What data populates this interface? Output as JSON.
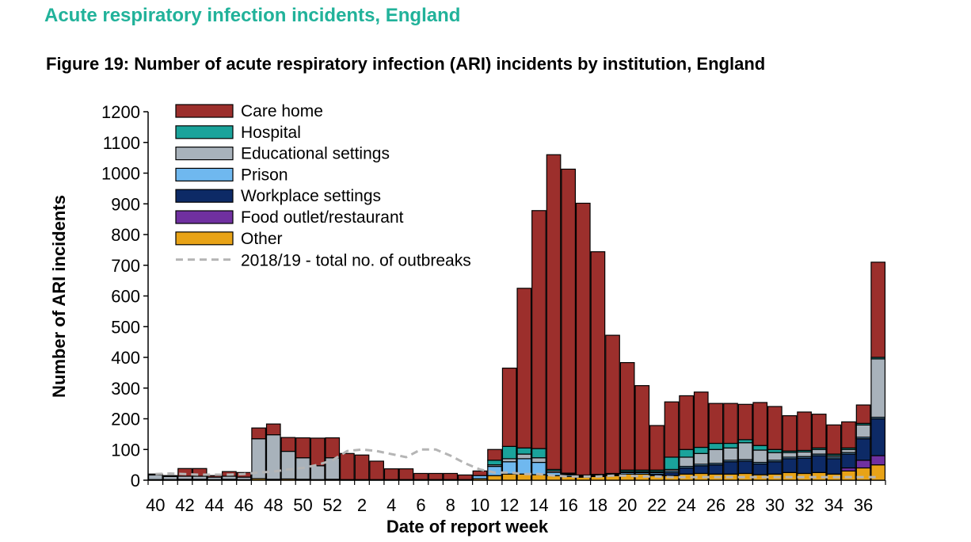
{
  "header": {
    "section_title": "Acute respiratory infection incidents, England",
    "figure_title": "Figure 19: Number of acute respiratory infection (ARI) incidents by institution, England"
  },
  "colors": {
    "Care home": "#9c2f2c",
    "Hospital": "#1aa39b",
    "Educational settings": "#a8b2bb",
    "Prison": "#6fb8ef",
    "Workplace settings": "#0d2a66",
    "Food outlet/restaurant": "#7030a0",
    "Other": "#e8a317",
    "2018/19 - total no. of outbreaks": "#b5b5b5"
  },
  "chart_data": {
    "type": "bar",
    "stacked": true,
    "title": "",
    "xlabel": "Date of report week",
    "ylabel": "Number of ARI incidents",
    "ylim": [
      0,
      1200
    ],
    "yticks": [
      0,
      100,
      200,
      300,
      400,
      500,
      600,
      700,
      800,
      900,
      1000,
      1100,
      1200
    ],
    "grid": false,
    "legend_position": "top-left",
    "categories": [
      40,
      41,
      42,
      43,
      44,
      45,
      46,
      47,
      48,
      49,
      50,
      51,
      52,
      1,
      2,
      3,
      4,
      5,
      6,
      7,
      8,
      9,
      10,
      11,
      12,
      13,
      14,
      15,
      16,
      17,
      18,
      19,
      20,
      21,
      22,
      23,
      24,
      25,
      26,
      27,
      28,
      29,
      30,
      31,
      32,
      33,
      34,
      35,
      36,
      37
    ],
    "tick_labels": [
      "40",
      "42",
      "44",
      "46",
      "48",
      "50",
      "52",
      "2",
      "4",
      "6",
      "8",
      "10",
      "12",
      "14",
      "16",
      "18",
      "20",
      "22",
      "24",
      "26",
      "28",
      "30",
      "32",
      "34",
      "36"
    ],
    "series": [
      {
        "name": "Other",
        "values": [
          2,
          2,
          3,
          3,
          2,
          3,
          2,
          5,
          3,
          4,
          3,
          2,
          3,
          2,
          2,
          2,
          2,
          2,
          2,
          2,
          2,
          2,
          5,
          15,
          20,
          20,
          18,
          15,
          12,
          10,
          12,
          15,
          20,
          20,
          15,
          15,
          20,
          22,
          20,
          20,
          22,
          18,
          20,
          25,
          22,
          25,
          20,
          30,
          40,
          50
        ]
      },
      {
        "name": "Food outlet/restaurant",
        "values": [
          0,
          0,
          0,
          0,
          0,
          0,
          0,
          0,
          0,
          0,
          0,
          0,
          0,
          0,
          0,
          0,
          0,
          0,
          0,
          0,
          0,
          0,
          0,
          0,
          0,
          0,
          0,
          0,
          0,
          0,
          0,
          0,
          0,
          0,
          0,
          0,
          0,
          0,
          0,
          0,
          0,
          0,
          0,
          0,
          0,
          0,
          0,
          10,
          25,
          30
        ]
      },
      {
        "name": "Workplace settings",
        "values": [
          0,
          0,
          0,
          0,
          0,
          0,
          0,
          0,
          0,
          0,
          0,
          0,
          0,
          0,
          0,
          0,
          0,
          0,
          0,
          0,
          0,
          0,
          0,
          0,
          0,
          0,
          0,
          0,
          0,
          0,
          0,
          0,
          0,
          0,
          5,
          10,
          20,
          25,
          30,
          40,
          40,
          35,
          40,
          45,
          50,
          55,
          50,
          45,
          70,
          120
        ]
      },
      {
        "name": "Prison",
        "values": [
          0,
          0,
          0,
          0,
          0,
          0,
          0,
          0,
          0,
          0,
          0,
          0,
          0,
          0,
          0,
          0,
          0,
          0,
          0,
          0,
          0,
          0,
          10,
          30,
          40,
          50,
          40,
          10,
          5,
          3,
          3,
          3,
          5,
          5,
          5,
          5,
          5,
          5,
          5,
          5,
          5,
          5,
          5,
          5,
          5,
          5,
          5,
          5,
          5,
          5
        ]
      },
      {
        "name": "Educational settings",
        "values": [
          15,
          10,
          10,
          10,
          8,
          10,
          8,
          130,
          145,
          90,
          70,
          45,
          70,
          0,
          0,
          0,
          0,
          0,
          0,
          0,
          0,
          0,
          0,
          5,
          10,
          15,
          15,
          5,
          3,
          2,
          2,
          2,
          3,
          3,
          3,
          5,
          30,
          35,
          45,
          40,
          55,
          40,
          25,
          15,
          15,
          15,
          5,
          10,
          40,
          190
        ]
      },
      {
        "name": "Hospital",
        "values": [
          0,
          0,
          0,
          0,
          0,
          0,
          0,
          0,
          0,
          0,
          0,
          0,
          0,
          0,
          0,
          0,
          0,
          0,
          0,
          0,
          0,
          0,
          0,
          15,
          40,
          20,
          30,
          5,
          3,
          2,
          2,
          2,
          5,
          5,
          5,
          40,
          25,
          20,
          20,
          15,
          10,
          15,
          10,
          5,
          5,
          5,
          5,
          5,
          5,
          5
        ]
      },
      {
        "name": "Care home",
        "values": [
          3,
          3,
          25,
          25,
          5,
          15,
          15,
          35,
          35,
          45,
          65,
          90,
          65,
          85,
          80,
          60,
          35,
          35,
          20,
          20,
          20,
          15,
          15,
          35,
          255,
          520,
          775,
          1025,
          990,
          885,
          725,
          450,
          350,
          275,
          145,
          180,
          175,
          180,
          130,
          130,
          115,
          140,
          140,
          115,
          125,
          110,
          95,
          85,
          60,
          310
        ]
      }
    ],
    "line": {
      "name": "2018/19 - total no. of outbreaks",
      "style": "dashed",
      "values": [
        20,
        22,
        20,
        18,
        18,
        18,
        20,
        25,
        28,
        35,
        40,
        50,
        65,
        95,
        100,
        95,
        85,
        75,
        100,
        100,
        80,
        55,
        35,
        25,
        25,
        20,
        20,
        15,
        12,
        12,
        12,
        15,
        15,
        12,
        12,
        10,
        10,
        10,
        10,
        10,
        10,
        10,
        10,
        10,
        10,
        10,
        10,
        10,
        10,
        10
      ]
    }
  }
}
